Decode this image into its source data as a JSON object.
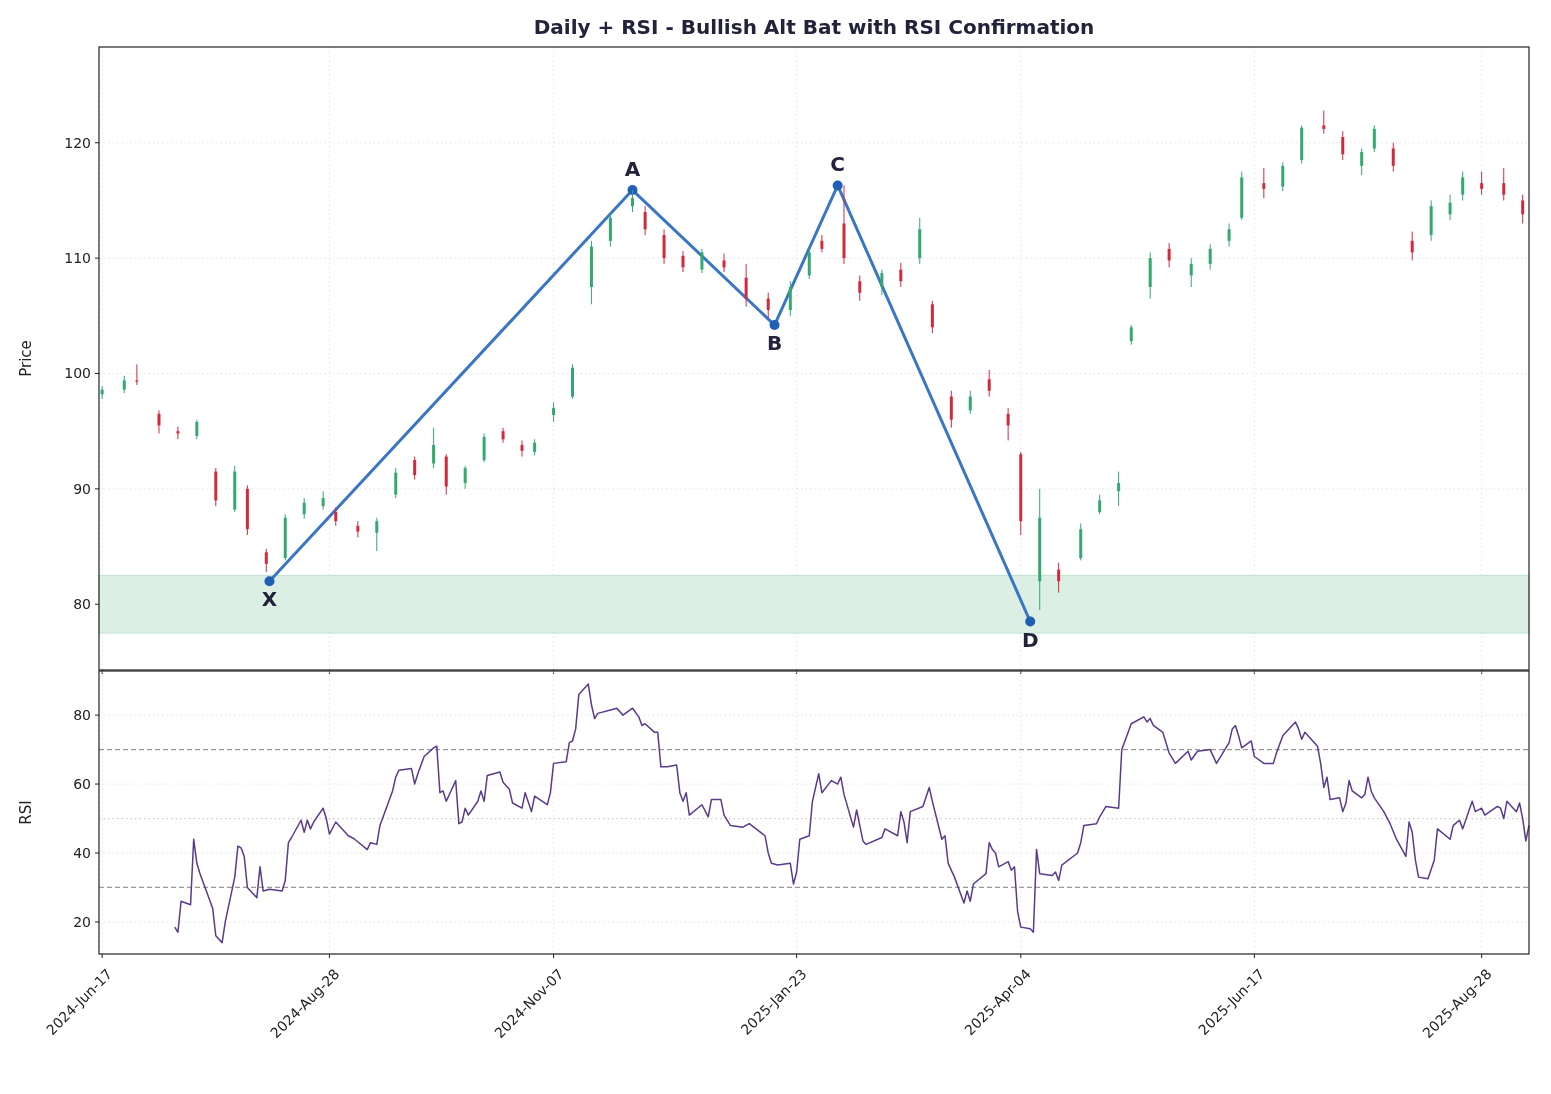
{
  "chart_data": [
    {
      "type": "candlestick",
      "title": "Daily + RSI - Bullish Alt Bat with RSI Confirmation",
      "ylabel": "Price",
      "x": [
        "2024-06-17",
        "2024-06-24",
        "2024-06-28",
        "2024-07-05",
        "2024-07-11",
        "2024-07-17",
        "2024-07-23",
        "2024-07-29",
        "2024-08-02",
        "2024-08-08",
        "2024-08-14",
        "2024-08-20",
        "2024-08-26",
        "2024-08-30",
        "2024-09-06",
        "2024-09-12",
        "2024-09-18",
        "2024-09-24",
        "2024-09-30",
        "2024-10-04",
        "2024-10-10",
        "2024-10-16",
        "2024-10-22",
        "2024-10-28",
        "2024-11-01",
        "2024-11-07",
        "2024-11-13",
        "2024-11-19",
        "2024-11-25",
        "2024-12-02",
        "2024-12-06",
        "2024-12-12",
        "2024-12-18",
        "2024-12-24",
        "2024-12-31",
        "2025-01-07",
        "2025-01-14",
        "2025-01-21",
        "2025-01-27",
        "2025-01-31",
        "2025-02-07",
        "2025-02-12",
        "2025-02-19",
        "2025-02-25",
        "2025-03-03",
        "2025-03-07",
        "2025-03-13",
        "2025-03-19",
        "2025-03-25",
        "2025-03-31",
        "2025-04-04",
        "2025-04-10",
        "2025-04-16",
        "2025-04-23",
        "2025-04-29",
        "2025-05-05",
        "2025-05-09",
        "2025-05-15",
        "2025-05-21",
        "2025-05-28",
        "2025-06-03",
        "2025-06-09",
        "2025-06-13",
        "2025-06-20",
        "2025-06-26",
        "2025-07-02",
        "2025-07-09",
        "2025-07-15",
        "2025-07-21",
        "2025-07-25",
        "2025-07-31",
        "2025-08-06",
        "2025-08-12",
        "2025-08-18",
        "2025-08-22",
        "2025-08-28",
        "2025-09-04",
        "2025-09-10"
      ],
      "ohlc": [
        [
          98.2,
          98.9,
          97.8,
          98.6
        ],
        [
          98.6,
          99.8,
          98.3,
          99.4
        ],
        [
          99.4,
          100.8,
          99.0,
          99.3
        ],
        [
          96.5,
          96.8,
          94.8,
          95.5
        ],
        [
          95.0,
          95.4,
          94.3,
          94.8
        ],
        [
          94.6,
          96.0,
          94.3,
          95.8
        ],
        [
          91.5,
          91.8,
          88.5,
          89.0
        ],
        [
          88.2,
          92.0,
          88.0,
          91.5
        ],
        [
          90.0,
          90.3,
          86.0,
          86.5
        ],
        [
          84.5,
          84.8,
          82.8,
          83.5
        ],
        [
          84.0,
          87.8,
          83.8,
          87.5
        ],
        [
          87.8,
          89.2,
          87.4,
          88.8
        ],
        [
          88.5,
          89.8,
          88.2,
          89.2
        ],
        [
          88.0,
          88.4,
          86.8,
          87.2
        ],
        [
          86.8,
          87.2,
          85.8,
          86.3
        ],
        [
          86.2,
          87.5,
          84.6,
          87.2
        ],
        [
          89.5,
          91.8,
          89.2,
          91.4
        ],
        [
          92.5,
          92.8,
          90.8,
          91.2
        ],
        [
          92.2,
          95.3,
          91.8,
          93.8
        ],
        [
          92.8,
          93.0,
          89.5,
          90.2
        ],
        [
          90.5,
          92.0,
          90.0,
          91.8
        ],
        [
          92.5,
          94.8,
          92.3,
          94.5
        ],
        [
          95.0,
          95.3,
          94.0,
          94.3
        ],
        [
          93.8,
          94.2,
          92.8,
          93.3
        ],
        [
          93.2,
          94.3,
          92.9,
          94.0
        ],
        [
          96.4,
          97.5,
          95.8,
          97.0
        ],
        [
          98.0,
          100.8,
          97.8,
          100.5
        ],
        [
          107.5,
          111.5,
          106.0,
          111.0
        ],
        [
          111.5,
          114.0,
          111.0,
          113.5
        ],
        [
          114.5,
          115.9,
          114.0,
          115.2
        ],
        [
          114.0,
          114.5,
          112.0,
          112.5
        ],
        [
          112.0,
          112.5,
          109.5,
          110.0
        ],
        [
          110.2,
          110.6,
          108.8,
          109.2
        ],
        [
          109.0,
          110.8,
          108.7,
          110.5
        ],
        [
          109.8,
          110.4,
          108.8,
          109.2
        ],
        [
          108.3,
          109.5,
          105.8,
          106.5
        ],
        [
          106.5,
          107.0,
          104.8,
          105.5
        ],
        [
          105.5,
          108.0,
          105.0,
          107.5
        ],
        [
          108.5,
          111.0,
          108.2,
          110.5
        ],
        [
          111.5,
          112.0,
          110.5,
          110.8
        ],
        [
          113.0,
          116.3,
          109.5,
          110.0
        ],
        [
          108.0,
          108.5,
          106.3,
          107.0
        ],
        [
          107.5,
          109.0,
          106.8,
          108.7
        ],
        [
          109.0,
          109.6,
          107.5,
          108.0
        ],
        [
          110.0,
          113.5,
          109.5,
          112.5
        ],
        [
          106.0,
          106.3,
          103.5,
          104.0
        ],
        [
          98.0,
          98.5,
          95.3,
          96.0
        ],
        [
          96.8,
          98.5,
          96.5,
          98.0
        ],
        [
          99.5,
          100.3,
          98.0,
          98.5
        ],
        [
          96.5,
          97.0,
          94.2,
          95.5
        ],
        [
          93.0,
          93.2,
          86.0,
          87.2
        ],
        [
          82.0,
          90.0,
          79.5,
          87.5
        ],
        [
          83.0,
          83.6,
          81.0,
          82.0
        ],
        [
          84.0,
          87.0,
          83.8,
          86.5
        ],
        [
          88.0,
          89.5,
          87.8,
          89.0
        ],
        [
          89.8,
          91.5,
          88.5,
          90.5
        ],
        [
          102.8,
          104.2,
          102.5,
          104.0
        ],
        [
          107.5,
          110.5,
          106.5,
          110.0
        ],
        [
          110.8,
          111.3,
          109.2,
          109.8
        ],
        [
          108.5,
          110.0,
          107.5,
          109.5
        ],
        [
          109.5,
          111.2,
          109.0,
          110.8
        ],
        [
          111.5,
          113.0,
          111.0,
          112.5
        ],
        [
          113.5,
          117.5,
          113.3,
          117.0
        ],
        [
          116.5,
          117.8,
          115.2,
          116.0
        ],
        [
          116.2,
          118.3,
          115.8,
          118.0
        ],
        [
          118.5,
          121.5,
          118.2,
          121.3
        ],
        [
          121.5,
          122.8,
          120.8,
          121.2
        ],
        [
          120.5,
          121.0,
          118.5,
          119.0
        ],
        [
          118.0,
          119.5,
          117.2,
          119.2
        ],
        [
          119.5,
          121.5,
          119.2,
          121.2
        ],
        [
          119.5,
          120.0,
          117.5,
          118.0
        ],
        [
          111.5,
          112.3,
          109.8,
          110.5
        ],
        [
          112.0,
          115.0,
          111.5,
          114.5
        ],
        [
          113.8,
          115.5,
          113.3,
          114.8
        ],
        [
          115.5,
          117.5,
          115.0,
          117.0
        ],
        [
          116.5,
          117.5,
          115.5,
          116.0
        ],
        [
          116.5,
          117.8,
          115.0,
          115.5
        ],
        [
          115.0,
          115.5,
          113.0,
          113.8
        ]
      ],
      "series": [
        {
          "type": "line",
          "x": [
            "2024-08-09",
            "2024-12-02",
            "2025-01-16",
            "2025-02-05",
            "2025-04-07"
          ],
          "values": [
            82.0,
            115.9,
            104.2,
            116.3,
            78.5
          ],
          "color": "#3a76c4",
          "marker": "circle"
        }
      ],
      "annotations": [
        {
          "text": "X",
          "x": "2024-08-09",
          "y": 82.0
        },
        {
          "text": "A",
          "x": "2024-12-02",
          "y": 115.9
        },
        {
          "text": "B",
          "x": "2025-01-16",
          "y": 104.2
        },
        {
          "text": "C",
          "x": "2025-02-05",
          "y": 116.3
        },
        {
          "text": "D",
          "x": "2025-04-07",
          "y": 78.5
        }
      ],
      "bands": [
        {
          "axis": "y",
          "from": 77.5,
          "to": 82.5,
          "color": "#dbefe5"
        }
      ],
      "xlim": [
        "2024-06-16",
        "2025-09-12"
      ],
      "xticks": [
        {
          "value": "2024-06-17",
          "label": null
        },
        {
          "value": "2024-08-28",
          "label": null
        },
        {
          "value": "2024-11-07",
          "label": null
        },
        {
          "value": "2025-01-23",
          "label": null
        },
        {
          "value": "2025-04-04",
          "label": null
        },
        {
          "value": "2025-06-17",
          "label": null
        },
        {
          "value": "2025-08-28",
          "label": null
        }
      ],
      "ylim": [
        74.3,
        128.3
      ],
      "yticks": [
        80,
        90,
        100,
        110,
        120
      ],
      "grid": true,
      "tick_labels": "y"
    },
    {
      "type": "line",
      "ylabel": "RSI",
      "x": [
        "2024-07-10",
        "2024-07-11",
        "2024-07-12",
        "2024-07-15",
        "2024-07-16",
        "2024-07-17",
        "2024-07-18",
        "2024-07-22",
        "2024-07-23",
        "2024-07-25",
        "2024-07-26",
        "2024-07-29",
        "2024-07-30",
        "2024-07-31",
        "2024-08-01",
        "2024-08-02",
        "2024-08-05",
        "2024-08-06",
        "2024-08-07",
        "2024-08-09",
        "2024-08-13",
        "2024-08-14",
        "2024-08-15",
        "2024-08-16",
        "2024-08-19",
        "2024-08-20",
        "2024-08-21",
        "2024-08-22",
        "2024-08-23",
        "2024-08-26",
        "2024-08-27",
        "2024-08-28",
        "2024-08-30",
        "2024-09-03",
        "2024-09-05",
        "2024-09-09",
        "2024-09-10",
        "2024-09-12",
        "2024-09-13",
        "2024-09-17",
        "2024-09-18",
        "2024-09-19",
        "2024-09-23",
        "2024-09-24",
        "2024-09-25",
        "2024-09-27",
        "2024-09-30",
        "2024-10-01",
        "2024-10-02",
        "2024-10-03",
        "2024-10-04",
        "2024-10-07",
        "2024-10-08",
        "2024-10-09",
        "2024-10-10",
        "2024-10-11",
        "2024-10-14",
        "2024-10-15",
        "2024-10-16",
        "2024-10-17",
        "2024-10-21",
        "2024-10-22",
        "2024-10-24",
        "2024-10-25",
        "2024-10-28",
        "2024-10-29",
        "2024-10-31",
        "2024-11-01",
        "2024-11-05",
        "2024-11-06",
        "2024-11-07",
        "2024-11-11",
        "2024-11-12",
        "2024-11-13",
        "2024-11-14",
        "2024-11-15",
        "2024-11-18",
        "2024-11-19",
        "2024-11-20",
        "2024-11-21",
        "2024-11-25",
        "2024-11-27",
        "2024-11-29",
        "2024-12-02",
        "2024-12-04",
        "2024-12-05",
        "2024-12-06",
        "2024-12-09",
        "2024-12-10",
        "2024-12-11",
        "2024-12-13",
        "2024-12-16",
        "2024-12-17",
        "2024-12-18",
        "2024-12-19",
        "2024-12-20",
        "2024-12-24",
        "2024-12-26",
        "2024-12-27",
        "2024-12-30",
        "2024-12-31",
        "2025-01-02",
        "2025-01-06",
        "2025-01-08",
        "2025-01-13",
        "2025-01-14",
        "2025-01-15",
        "2025-01-17",
        "2025-01-21",
        "2025-01-22",
        "2025-01-23",
        "2025-01-24",
        "2025-01-27",
        "2025-01-28",
        "2025-01-30",
        "2025-01-31",
        "2025-02-03",
        "2025-02-05",
        "2025-02-06",
        "2025-02-07",
        "2025-02-10",
        "2025-02-11",
        "2025-02-12",
        "2025-02-13",
        "2025-02-14",
        "2025-02-19",
        "2025-02-20",
        "2025-02-24",
        "2025-02-25",
        "2025-02-26",
        "2025-02-27",
        "2025-02-28",
        "2025-03-04",
        "2025-03-06",
        "2025-03-07",
        "2025-03-10",
        "2025-03-11",
        "2025-03-12",
        "2025-03-14",
        "2025-03-17",
        "2025-03-18",
        "2025-03-19",
        "2025-03-20",
        "2025-03-24",
        "2025-03-25",
        "2025-03-26",
        "2025-03-27",
        "2025-03-28",
        "2025-03-31",
        "2025-04-01",
        "2025-04-02",
        "2025-04-03",
        "2025-04-04",
        "2025-04-07",
        "2025-04-08",
        "2025-04-09",
        "2025-04-10",
        "2025-04-14",
        "2025-04-15",
        "2025-04-16",
        "2025-04-17",
        "2025-04-22",
        "2025-04-23",
        "2025-04-24",
        "2025-04-28",
        "2025-04-29",
        "2025-05-01",
        "2025-05-05",
        "2025-05-06",
        "2025-05-07",
        "2025-05-09",
        "2025-05-13",
        "2025-05-14",
        "2025-05-15",
        "2025-05-16",
        "2025-05-19",
        "2025-05-21",
        "2025-05-23",
        "2025-05-27",
        "2025-05-28",
        "2025-05-30",
        "2025-06-03",
        "2025-06-05",
        "2025-06-09",
        "2025-06-10",
        "2025-06-11",
        "2025-06-12",
        "2025-06-13",
        "2025-06-16",
        "2025-06-17",
        "2025-06-20",
        "2025-06-23",
        "2025-06-24",
        "2025-06-26",
        "2025-06-30",
        "2025-07-01",
        "2025-07-02",
        "2025-07-03",
        "2025-07-07",
        "2025-07-08",
        "2025-07-09",
        "2025-07-10",
        "2025-07-11",
        "2025-07-14",
        "2025-07-15",
        "2025-07-16",
        "2025-07-17",
        "2025-07-18",
        "2025-07-21",
        "2025-07-22",
        "2025-07-23",
        "2025-07-24",
        "2025-07-25",
        "2025-07-28",
        "2025-07-30",
        "2025-08-01",
        "2025-08-04",
        "2025-08-05",
        "2025-08-06",
        "2025-08-07",
        "2025-08-08",
        "2025-08-11",
        "2025-08-13",
        "2025-08-14",
        "2025-08-18",
        "2025-08-19",
        "2025-08-21",
        "2025-08-22",
        "2025-08-25",
        "2025-08-26",
        "2025-08-28",
        "2025-08-29",
        "2025-09-02",
        "2025-09-03",
        "2025-09-04",
        "2025-09-05",
        "2025-09-08",
        "2025-09-09",
        "2025-09-10",
        "2025-09-11",
        "2025-09-12"
      ],
      "series": [
        {
          "color": "#5b3a8c",
          "values": [
            18.5,
            17,
            26,
            25,
            44,
            37,
            34,
            24,
            16,
            14,
            20,
            33,
            42,
            41.5,
            39,
            30,
            27,
            36,
            29,
            29.5,
            29,
            32,
            43,
            44.5,
            49.5,
            46,
            49.5,
            47,
            49,
            53,
            50,
            45.5,
            49,
            45,
            44,
            41,
            43,
            42.5,
            48,
            58,
            62,
            64,
            64.5,
            60,
            63,
            68,
            70.5,
            71,
            57.5,
            58,
            55,
            61,
            48.5,
            49,
            53,
            51,
            55,
            58,
            55,
            62.5,
            63.5,
            60.5,
            58.5,
            54.5,
            53,
            57.5,
            52,
            56.5,
            54,
            57.5,
            66,
            66.5,
            72,
            72.5,
            76,
            86,
            89,
            83,
            79,
            80.5,
            81.5,
            82,
            80,
            82,
            79.5,
            77,
            77.5,
            75,
            75,
            65,
            65,
            65.5,
            57.5,
            55,
            57.5,
            51,
            54,
            50.5,
            55.5,
            55.5,
            51,
            48,
            47.5,
            48.5,
            45,
            40,
            37,
            36.5,
            37,
            31,
            34.5,
            44,
            45,
            55,
            63,
            57.5,
            61,
            60,
            62,
            57,
            47.5,
            52.5,
            48,
            43.5,
            42.5,
            44.5,
            47,
            45,
            52,
            49,
            43,
            52,
            53.5,
            59,
            55,
            44,
            45,
            37,
            33,
            25.5,
            29,
            26,
            31,
            34,
            43,
            41,
            40,
            36,
            37.5,
            35,
            36,
            23,
            18.5,
            18,
            17,
            41,
            34,
            33.5,
            34.5,
            32,
            36.5,
            40,
            43,
            48,
            48.5,
            50.5,
            53.5,
            53,
            70,
            72.5,
            77.5,
            79.5,
            78,
            79,
            77,
            75,
            69,
            66,
            69.5,
            67,
            69.5,
            70,
            66,
            72,
            76,
            77,
            74,
            70.5,
            72.5,
            68,
            66,
            66,
            69,
            74,
            78,
            76,
            73,
            75,
            71,
            66,
            59,
            62,
            55.5,
            56,
            52,
            54.5,
            61,
            58,
            56,
            57,
            62,
            58,
            56,
            52,
            48.5,
            44,
            39,
            49,
            46,
            38,
            33,
            32.5,
            38,
            47,
            44,
            48,
            49.5,
            47,
            55,
            52,
            53,
            51,
            53.5,
            53,
            50,
            55,
            52,
            54.5,
            50,
            43.5,
            48
          ]
        }
      ],
      "ref_lines": [
        {
          "axis": "y",
          "value": 70,
          "color": "#999999",
          "line_style": "dashed"
        },
        {
          "axis": "y",
          "value": 30,
          "color": "#999999",
          "line_style": "dashed"
        },
        {
          "axis": "y",
          "value": 50,
          "color": "#cccccc",
          "line_style": "dotted"
        }
      ],
      "xlim": [
        "2024-06-16",
        "2025-09-12"
      ],
      "xticks": [
        {
          "value": "2024-06-17",
          "label": "2024-Jun-17"
        },
        {
          "value": "2024-08-28",
          "label": "2024-Aug-28"
        },
        {
          "value": "2024-11-07",
          "label": "2024-Nov-07"
        },
        {
          "value": "2025-01-23",
          "label": "2025-Jan-23"
        },
        {
          "value": "2025-04-04",
          "label": "2025-Apr-04"
        },
        {
          "value": "2025-06-17",
          "label": "2025-Jun-17"
        },
        {
          "value": "2025-08-28",
          "label": "2025-Aug-28"
        }
      ],
      "ylim": [
        10.7,
        92.8
      ],
      "yticks": [
        20,
        40,
        60,
        80
      ],
      "grid": true
    }
  ]
}
